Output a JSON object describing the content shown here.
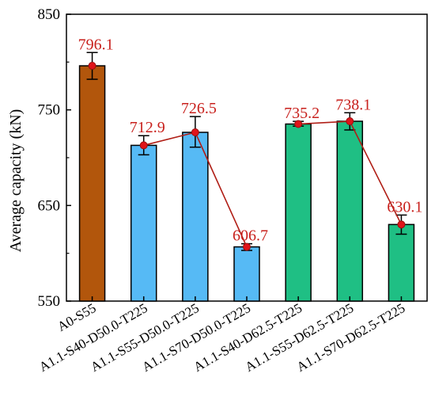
{
  "chart_data": {
    "type": "bar",
    "ylabel": "Average capacity (kN)",
    "xlabel": "",
    "ylim": [
      550,
      850
    ],
    "yticks": [
      550,
      650,
      750,
      850
    ],
    "categories": [
      "A0-S55",
      "A1.1-S40-D50.0-T225",
      "A1.1-S55-D50.0-T225",
      "A1.1-S70-D50.0-T225",
      "A1.1-S40-D62.5-T225",
      "A1.1-S55-D62.5-T225",
      "A1.1-S70-D62.5-T225"
    ],
    "values": [
      796.1,
      712.9,
      726.5,
      606.7,
      735.2,
      738.1,
      630.1
    ],
    "value_labels": [
      "796.1",
      "712.9",
      "726.5",
      "606.7",
      "735.2",
      "738.1",
      "630.1"
    ],
    "error_bars": [
      [
        782,
        810
      ],
      [
        703,
        723
      ],
      [
        711,
        743
      ],
      [
        603,
        610
      ],
      [
        733,
        738
      ],
      [
        729,
        747
      ],
      [
        620,
        640
      ]
    ],
    "bar_colors": [
      "#b2560c",
      "#56baf5",
      "#56baf5",
      "#56baf5",
      "#1fbf84",
      "#1fbf84",
      "#1fbf84"
    ],
    "line_segments": [
      [
        1,
        2,
        3
      ],
      [
        4,
        5,
        6
      ]
    ],
    "line_color": "#b01e16",
    "marker_color": "#e0141a",
    "label_color": "#c8201c",
    "legend": "none",
    "grid": false
  }
}
